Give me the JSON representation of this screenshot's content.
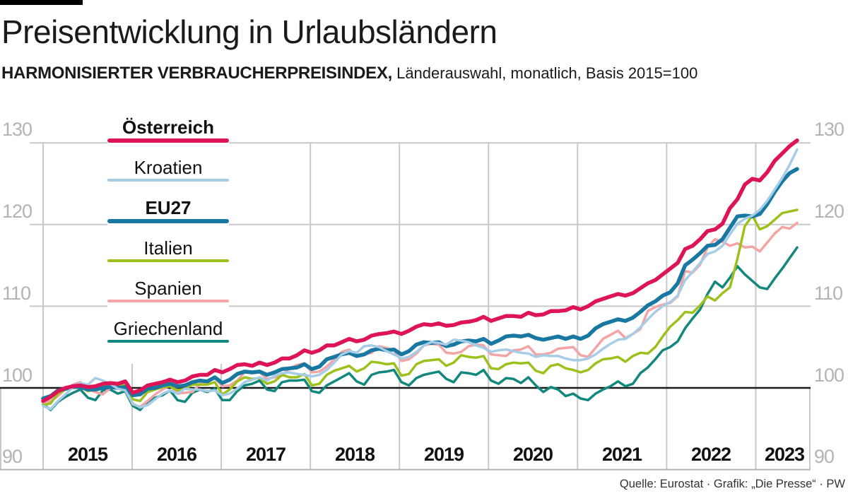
{
  "header": {
    "title": "Preisentwicklung in Urlaubsländern",
    "subtitle_bold": "HARMONISIERTER VERBRAUCHERPREISINDEX,",
    "subtitle_rest": " Länderauswahl, monatlich, Basis 2015=100"
  },
  "footer": {
    "credit": "Quelle: Eurostat · Grafik: „Die Presse“ · PW"
  },
  "chart_data": {
    "type": "line",
    "title": "Preisentwicklung in Urlaubsländern",
    "subtitle": "Harmonisierter Verbraucherpreisindex, Länderauswahl, monatlich, Basis 2015=100",
    "x_unit": "month",
    "x_start": "2015-01",
    "x_end": "2023-06",
    "ylim": [
      90,
      133
    ],
    "baseline_value": 100,
    "grid": "on",
    "legend_position": "top-left overlay",
    "colors": {
      "grid": "#c9c9c9",
      "baseline": "#1a1a1a",
      "axis_label_gray": "#b3b3b3",
      "band_line": "#b5b5b5"
    },
    "y_ticks": [
      "130",
      "120",
      "110",
      "100",
      "90"
    ],
    "year_labels": [
      "2015",
      "2016",
      "2017",
      "2018",
      "2019",
      "2020",
      "2021",
      "2022",
      "2023"
    ],
    "series": [
      {
        "name": "Österreich",
        "slug": "oesterreich",
        "color": "#de1459",
        "width": 5.5,
        "bold": true,
        "values": [
          98.4,
          98.9,
          99.6,
          100.0,
          100.2,
          100.3,
          100.1,
          100.2,
          100.5,
          100.6,
          100.5,
          100.8,
          99.4,
          99.7,
          100.3,
          100.5,
          100.7,
          101.0,
          100.7,
          100.9,
          101.4,
          101.6,
          101.6,
          102.2,
          101.9,
          102.3,
          102.8,
          102.9,
          102.7,
          103.1,
          102.8,
          103.1,
          103.6,
          103.6,
          104.0,
          104.6,
          104.3,
          104.6,
          105.2,
          105.2,
          105.6,
          106.0,
          105.7,
          105.9,
          106.4,
          106.6,
          106.7,
          106.9,
          106.6,
          107.0,
          107.5,
          107.8,
          107.7,
          107.9,
          107.6,
          107.7,
          108.0,
          108.1,
          108.3,
          108.7,
          108.2,
          108.5,
          108.8,
          108.8,
          108.7,
          109.2,
          108.9,
          109.0,
          109.4,
          109.4,
          109.5,
          109.9,
          109.6,
          110.0,
          110.6,
          110.9,
          111.2,
          111.5,
          111.3,
          111.6,
          112.2,
          112.8,
          113.2,
          113.9,
          114.6,
          115.3,
          117.0,
          117.4,
          118.2,
          119.2,
          119.4,
          120.1,
          122.0,
          123.1,
          124.9,
          125.6,
          125.4,
          126.4,
          127.8,
          128.7,
          129.6,
          130.3
        ]
      },
      {
        "name": "Kroatien",
        "slug": "kroatien",
        "color": "#a6cce6",
        "width": 3.5,
        "bold": false,
        "values": [
          97.8,
          97.4,
          98.4,
          99.2,
          100.1,
          100.6,
          100.4,
          101.2,
          100.9,
          100.5,
          99.9,
          99.7,
          98.1,
          97.6,
          97.9,
          98.6,
          99.3,
          99.7,
          99.3,
          99.9,
          99.8,
          99.8,
          99.6,
          99.7,
          99.1,
          99.3,
          99.9,
          100.7,
          101.0,
          101.3,
          100.9,
          101.5,
          101.8,
          101.9,
          101.7,
          101.6,
          101.4,
          101.6,
          102.2,
          103.1,
          104.1,
          104.5,
          104.3,
          105.1,
          105.2,
          105.0,
          104.5,
          104.1,
          103.6,
          103.8,
          104.4,
          105.2,
          105.6,
          105.5,
          105.3,
          105.9,
          105.8,
          105.6,
          105.2,
          104.9,
          104.4,
          104.6,
          104.7,
          104.5,
          104.3,
          104.2,
          103.8,
          104.0,
          103.9,
          103.9,
          103.6,
          103.4,
          103.4,
          103.6,
          104.1,
          104.8,
          105.4,
          105.9,
          106.0,
          106.6,
          107.4,
          108.4,
          109.3,
          110.0,
          110.5,
          111.3,
          113.2,
          114.2,
          115.3,
          116.4,
          116.7,
          117.4,
          118.8,
          120.1,
          120.7,
          121.1,
          121.8,
          122.9,
          124.3,
          125.7,
          127.3,
          129.2
        ]
      },
      {
        "name": "EU27",
        "slug": "eu27",
        "color": "#1878a2",
        "width": 5.5,
        "bold": true,
        "values": [
          98.7,
          99.0,
          99.7,
          99.9,
          100.1,
          100.1,
          99.8,
          99.8,
          100.0,
          100.1,
          100.0,
          100.1,
          99.1,
          99.2,
          99.9,
          100.0,
          100.3,
          100.5,
          100.2,
          100.3,
          100.7,
          100.9,
          100.8,
          101.3,
          100.6,
          101.0,
          101.7,
          102.0,
          101.9,
          102.0,
          101.6,
          101.9,
          102.3,
          102.4,
          102.5,
          102.9,
          102.3,
          102.6,
          103.5,
          103.8,
          104.1,
          104.3,
          103.9,
          104.1,
          104.6,
          104.8,
          104.6,
          104.7,
          104.1,
          104.5,
          105.3,
          105.6,
          105.5,
          105.6,
          105.1,
          105.3,
          105.7,
          105.8,
          105.7,
          106.0,
          105.4,
          105.8,
          106.3,
          106.4,
          106.3,
          106.5,
          106.1,
          105.9,
          106.1,
          106.3,
          106.0,
          106.3,
          106.0,
          106.4,
          107.3,
          107.8,
          108.1,
          108.4,
          108.2,
          108.6,
          109.3,
          110.1,
          110.6,
          111.3,
          111.7,
          112.8,
          115.0,
          115.7,
          116.5,
          117.4,
          117.5,
          118.2,
          119.6,
          121.0,
          121.1,
          121.0,
          121.3,
          122.5,
          124.0,
          125.3,
          126.3,
          126.8
        ]
      },
      {
        "name": "Italien",
        "slug": "italien",
        "color": "#9dc11c",
        "width": 3.5,
        "bold": false,
        "values": [
          97.9,
          98.1,
          99.3,
          99.8,
          100.0,
          100.1,
          99.6,
          99.8,
          100.3,
          100.5,
          100.4,
          100.4,
          98.6,
          98.4,
          99.5,
          99.8,
          100.1,
          100.2,
          99.7,
          99.9,
          100.4,
          100.4,
          100.4,
          100.7,
          99.2,
          99.8,
          100.8,
          101.3,
          101.1,
          101.2,
          100.5,
          100.8,
          101.6,
          101.3,
          101.3,
          101.7,
          100.3,
          100.5,
          101.6,
          102.1,
          102.4,
          102.7,
          102.0,
          102.4,
          103.2,
          103.1,
          102.9,
          103.0,
          101.5,
          101.7,
          102.9,
          103.3,
          103.4,
          103.5,
          102.7,
          103.1,
          104.0,
          103.8,
          103.7,
          103.9,
          102.4,
          102.3,
          102.9,
          103.1,
          103.0,
          103.1,
          102.1,
          101.8,
          102.7,
          102.9,
          102.4,
          102.2,
          101.9,
          102.2,
          103.0,
          103.5,
          103.6,
          103.8,
          103.2,
          103.9,
          104.3,
          104.2,
          105.0,
          106.3,
          107.5,
          108.3,
          109.3,
          109.2,
          110.1,
          111.2,
          110.7,
          111.6,
          112.3,
          115.8,
          119.8,
          121.1,
          119.4,
          119.8,
          120.6,
          121.4,
          121.6,
          121.8
        ]
      },
      {
        "name": "Spanien",
        "slug": "spanien",
        "color": "#f3a5a5",
        "width": 3.5,
        "bold": false,
        "values": [
          98.2,
          98.4,
          99.0,
          99.9,
          100.4,
          100.7,
          99.8,
          99.5,
          99.2,
          100.0,
          100.3,
          100.0,
          98.0,
          97.7,
          98.4,
          99.2,
          99.8,
          100.3,
          99.3,
          99.4,
          99.5,
          100.5,
          100.8,
          101.2,
          100.2,
          100.3,
          100.9,
          101.9,
          101.8,
          101.9,
          101.1,
          101.3,
          101.5,
          102.4,
          102.8,
          103.0,
          101.9,
          102.0,
          102.6,
          103.5,
          104.4,
          104.7,
          103.9,
          104.1,
          104.3,
          105.1,
          104.9,
          104.6,
          103.3,
          103.5,
          104.2,
          105.2,
          105.4,
          105.3,
          104.3,
          104.2,
          104.4,
          105.1,
          105.3,
          105.2,
          104.1,
          104.0,
          103.9,
          104.6,
          104.7,
          105.1,
          104.1,
          104.1,
          104.3,
          104.8,
          104.9,
          105.0,
          104.0,
          103.8,
          104.9,
          106.0,
          106.5,
          107.0,
          106.1,
          106.6,
          107.2,
          109.4,
          109.9,
          110.2,
          110.4,
          111.2,
          114.3,
          114.1,
          115.1,
          117.2,
          118.2,
          117.9,
          117.4,
          117.7,
          117.2,
          117.3,
          116.7,
          117.8,
          118.9,
          119.7,
          119.5,
          120.2
        ]
      },
      {
        "name": "Griechenland",
        "slug": "griechenland",
        "color": "#12877d",
        "width": 3.5,
        "bold": false,
        "values": [
          98.0,
          97.3,
          98.3,
          98.9,
          99.4,
          99.8,
          98.8,
          98.5,
          99.7,
          99.8,
          99.3,
          99.6,
          97.8,
          97.3,
          98.3,
          98.8,
          99.1,
          99.7,
          98.5,
          98.3,
          99.4,
          99.8,
          99.5,
          99.9,
          98.5,
          98.5,
          99.6,
          100.3,
          100.5,
          100.9,
          99.8,
          99.6,
          100.7,
          100.9,
          100.9,
          101.0,
          99.6,
          99.4,
          100.3,
          100.8,
          101.3,
          101.8,
          100.8,
          100.4,
          101.6,
          101.9,
          102.0,
          102.2,
          100.7,
          100.3,
          101.2,
          101.6,
          101.8,
          102.0,
          101.1,
          100.7,
          101.9,
          101.8,
          101.6,
          102.2,
          100.9,
          100.5,
          101.2,
          101.1,
          100.6,
          101.3,
          100.3,
          99.5,
          100.1,
          99.8,
          99.0,
          99.3,
          98.7,
          98.5,
          99.3,
          99.8,
          100.2,
          100.8,
          100.2,
          100.5,
          101.8,
          102.5,
          103.5,
          104.6,
          105.0,
          105.7,
          107.3,
          108.5,
          109.6,
          111.5,
          113.0,
          112.3,
          113.5,
          114.9,
          113.9,
          113.1,
          112.3,
          112.1,
          113.4,
          114.6,
          115.9,
          117.2
        ]
      }
    ]
  },
  "legend": {
    "items": [
      {
        "label": "Österreich"
      },
      {
        "label": "Kroatien"
      },
      {
        "label": "EU27"
      },
      {
        "label": "Italien"
      },
      {
        "label": "Spanien"
      },
      {
        "label": "Griechenland"
      }
    ]
  }
}
